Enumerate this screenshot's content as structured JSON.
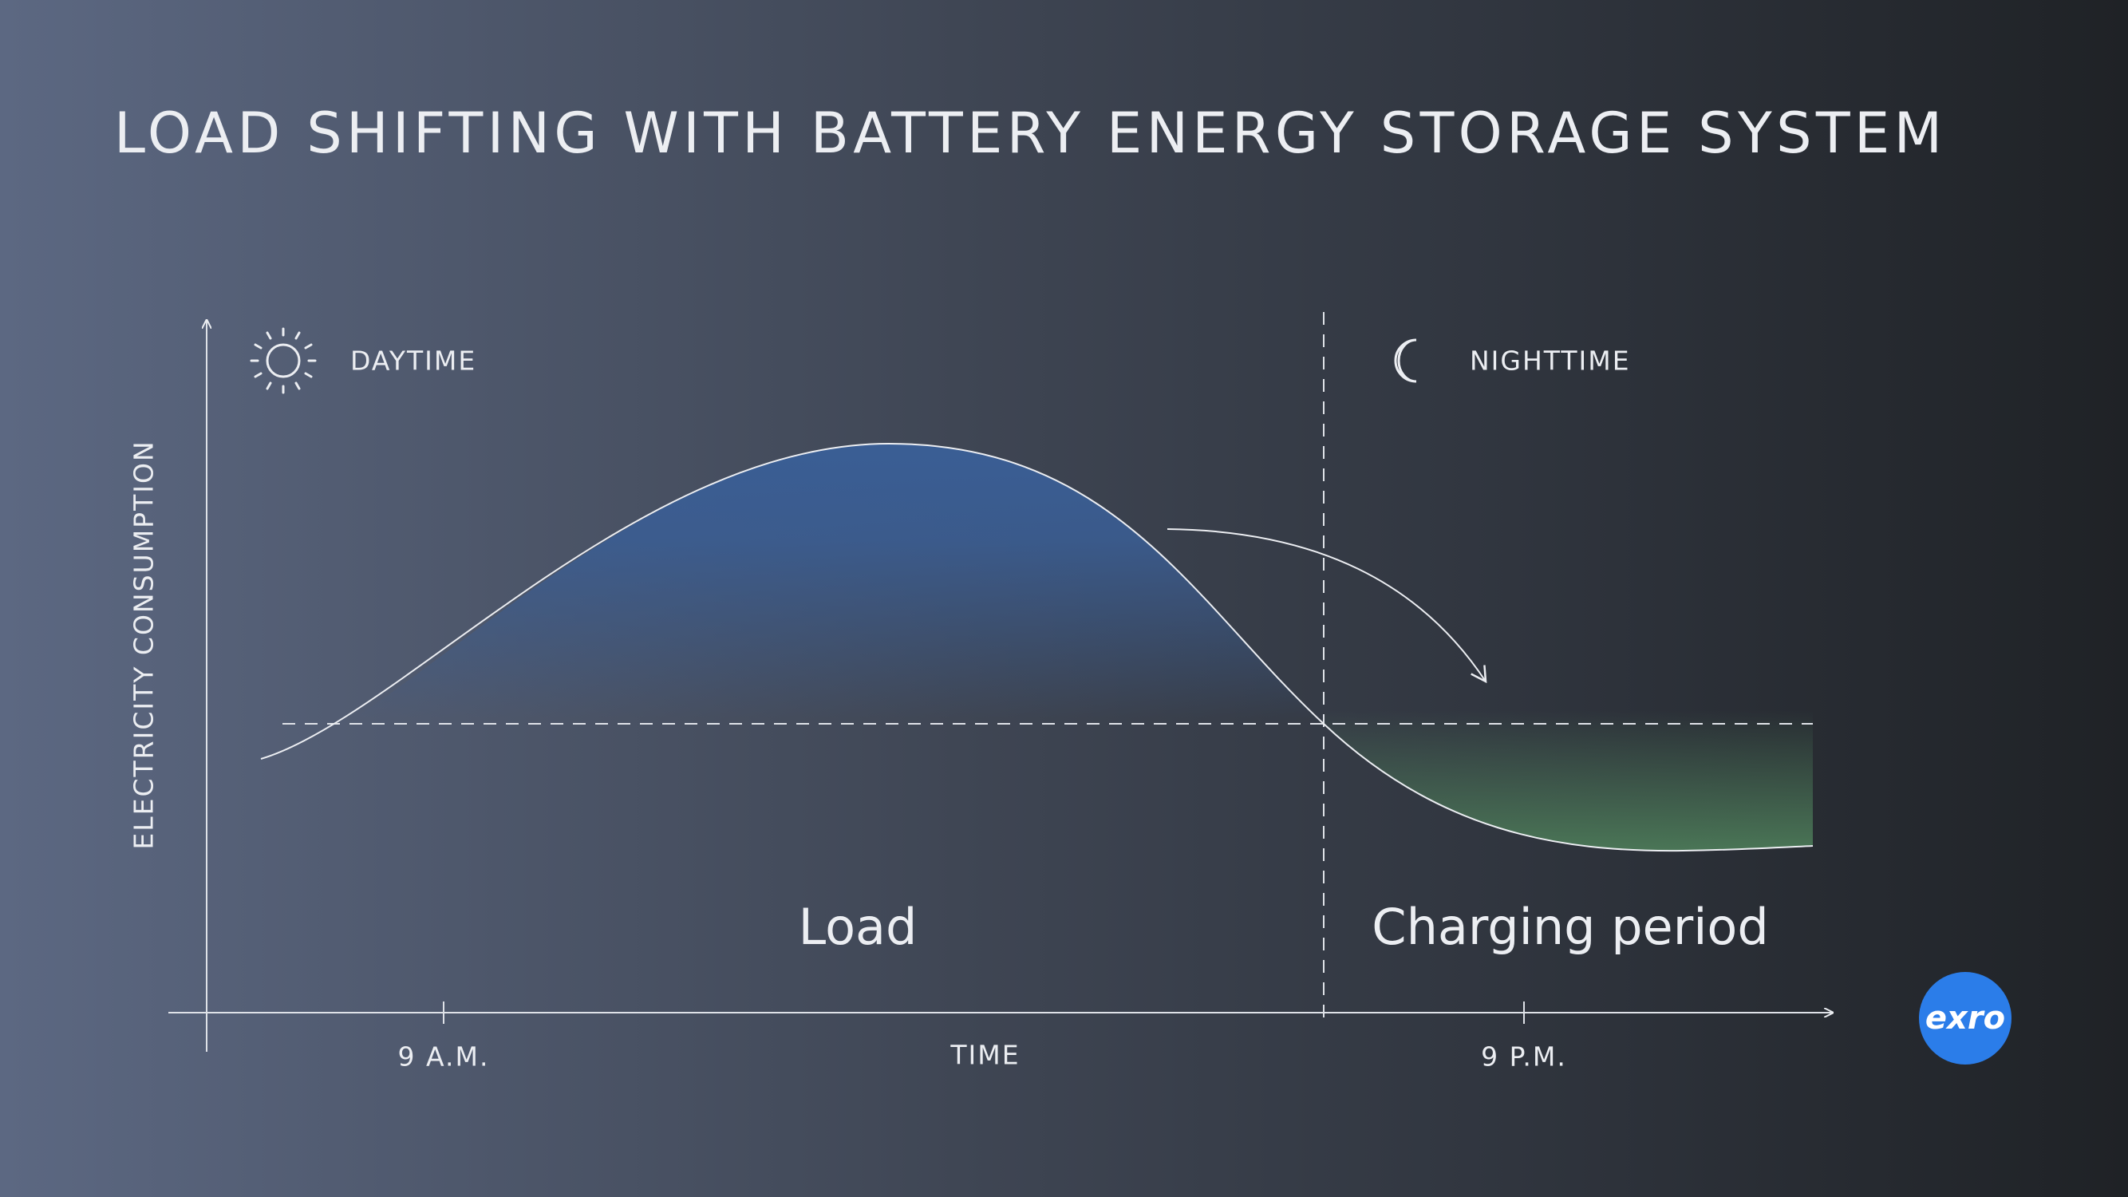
{
  "header": {
    "title": "LOAD SHIFTING WITH BATTERY ENERGY STORAGE SYSTEM"
  },
  "axes": {
    "y_label": "ELECTRICITY CONSUMPTION",
    "x_label": "TIME",
    "ticks": [
      "9 A.M.",
      "9 P.M."
    ]
  },
  "periods": {
    "day": "DAYTIME",
    "night": "NIGHTTIME"
  },
  "regions": {
    "load": "Load",
    "charging": "Charging period"
  },
  "logo": "exro"
}
